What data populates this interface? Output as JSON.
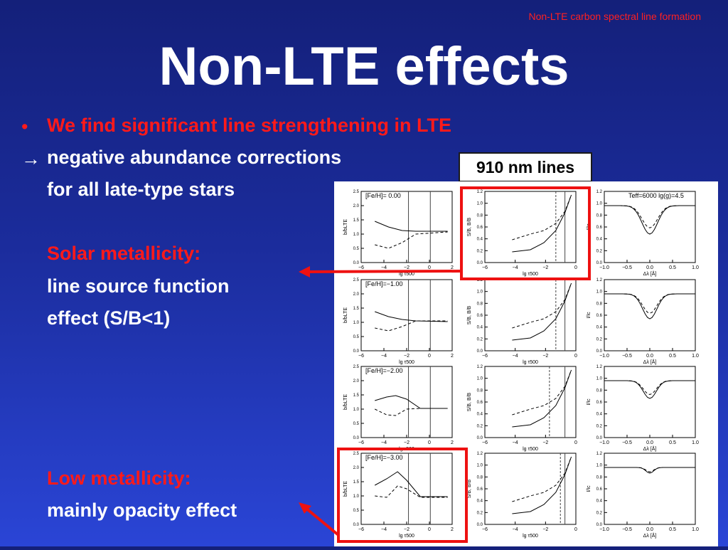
{
  "header_note": "Non-LTE carbon spectral line formation",
  "title": "Non-LTE effects",
  "bullet": "We find significant line strengthening in LTE",
  "arrow_symbol": "→",
  "line2": "negative abundance corrections",
  "line3": "for all late-type stars",
  "solar": {
    "heading": "Solar metallicity:",
    "line1": "line source function",
    "line2": "effect (S/B<1)"
  },
  "low": {
    "heading": "Low metallicity:",
    "line1": "mainly opacity effect"
  },
  "label_910": "910 nm lines",
  "panels": {
    "fe_labels": [
      "[Fe/H]=  0.00",
      "[Fe/H]=−1.00",
      "[Fe/H]=−2.00",
      "[Fe/H]=−3.00"
    ],
    "teff_label": "Teff=6000 lg(g)=4.5",
    "col1": {
      "xlabel": "lg τ500",
      "ylabel": "b/bLTE",
      "xticks": [
        "−6",
        "−4",
        "−2",
        "0",
        "2"
      ],
      "yticks": [
        "0.0",
        "0.5",
        "1.0",
        "1.5",
        "2.0",
        "2.5"
      ]
    },
    "col2": {
      "xlabel": "lg τ500",
      "ylabel": "S/B, B/B",
      "xticks": [
        "−6",
        "−4",
        "−2",
        "0"
      ],
      "yticks": [
        "0.0",
        "0.2",
        "0.4",
        "0.6",
        "0.8",
        "1.0",
        "1.2"
      ]
    },
    "col3": {
      "xlabel": "Δλ [Å]",
      "ylabel": "I/Ic",
      "xticks": [
        "−1.0",
        "−0.5",
        "0.0",
        "0.5",
        "1.0"
      ],
      "yticks": [
        "0.0",
        "0.2",
        "0.4",
        "0.6",
        "0.8",
        "1.0",
        "1.2"
      ]
    }
  },
  "colors": {
    "highlight": "#ee1111",
    "text_red": "#ff1a1a"
  }
}
